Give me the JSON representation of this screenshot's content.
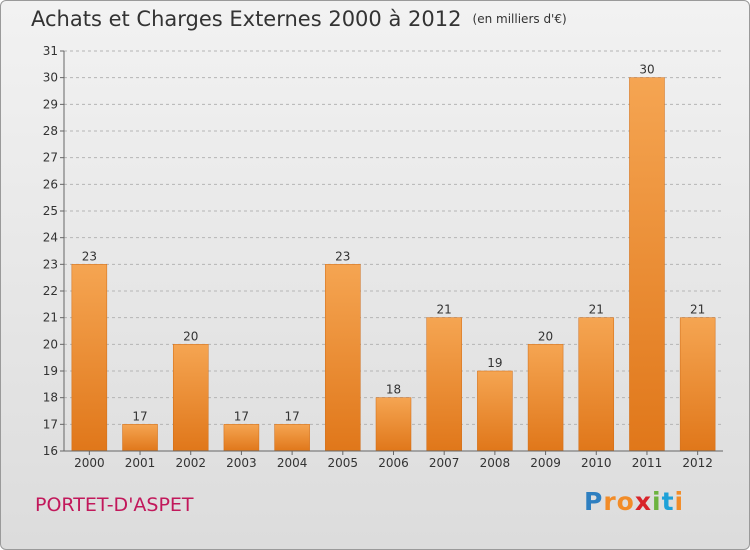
{
  "header": {
    "title": "Achats et Charges Externes 2000 à 2012",
    "unit": "(en milliers d'€)"
  },
  "footer": {
    "place": "PORTET-D'ASPET",
    "logo_letters": [
      "P",
      "r",
      "o",
      "x",
      "i",
      "t",
      "i"
    ],
    "logo_colors": [
      "#2e7fc0",
      "#f28c28",
      "#f28c28",
      "#d8232a",
      "#6cb33f",
      "#1ea1d8",
      "#f28c28"
    ]
  },
  "colors": {
    "bar_top": "#f5a552",
    "bar_bottom": "#e0771a",
    "grid": "#b5b5b5",
    "axis": "#666666",
    "text": "#333333"
  },
  "chart_data": {
    "type": "bar",
    "categories": [
      "2000",
      "2001",
      "2002",
      "2003",
      "2004",
      "2005",
      "2006",
      "2007",
      "2008",
      "2009",
      "2010",
      "2011",
      "2012"
    ],
    "values": [
      23,
      17,
      20,
      17,
      17,
      23,
      18,
      21,
      19,
      20,
      21,
      30,
      21
    ],
    "ylim": [
      16,
      31
    ],
    "yticks": [
      "16",
      "17",
      "18",
      "19",
      "20",
      "21",
      "22",
      "23",
      "24",
      "25",
      "26",
      "27",
      "28",
      "29",
      "30",
      "31"
    ],
    "grid": true,
    "data_labels": true
  }
}
